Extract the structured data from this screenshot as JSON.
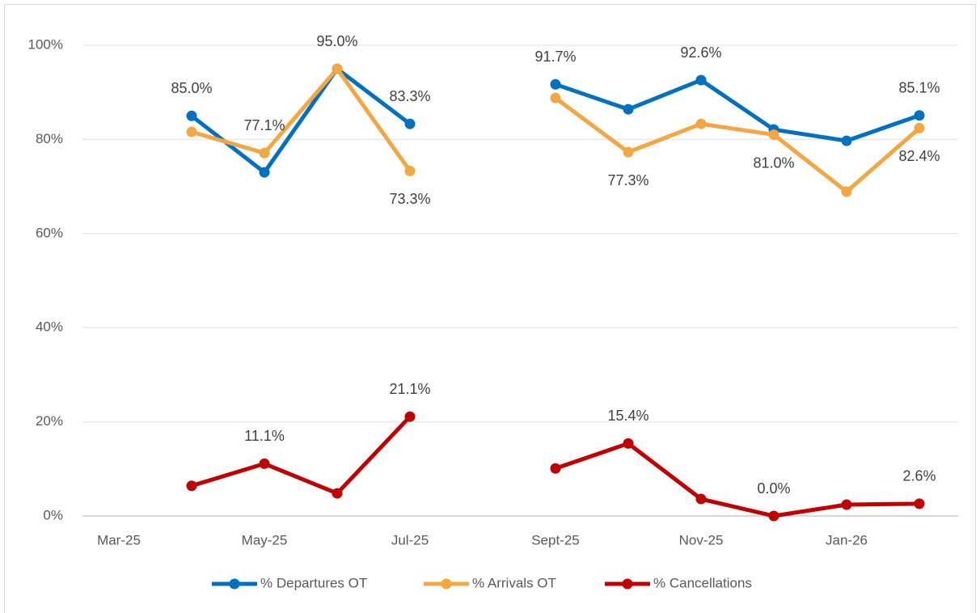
{
  "chart_data": {
    "type": "line",
    "categories": [
      "Mar-25",
      null,
      "May-25",
      null,
      "Jul-25",
      null,
      "Sept-25",
      null,
      "Nov-25",
      null,
      "Jan-26",
      null
    ],
    "series": [
      {
        "name": "% Departures OT",
        "color": "#0070c0",
        "values": [
          null,
          85.0,
          73.0,
          95.0,
          83.3,
          null,
          91.7,
          86.4,
          92.6,
          82.1,
          79.7,
          85.1
        ],
        "value_labels": [
          null,
          "85.0%",
          null,
          "95.0%",
          "83.3%",
          null,
          "91.7%",
          null,
          "92.6%",
          null,
          null,
          "85.1%"
        ]
      },
      {
        "name": "% Arrivals OT",
        "color": "#f4a642",
        "values": [
          null,
          81.6,
          77.1,
          95.0,
          73.3,
          null,
          88.8,
          77.3,
          83.3,
          81.0,
          68.9,
          82.4
        ],
        "value_labels": [
          null,
          null,
          "77.1%",
          null,
          "73.3%",
          null,
          null,
          "77.3%",
          null,
          "81.0%",
          null,
          "82.4%"
        ]
      },
      {
        "name": "% Cancellations",
        "color": "#c00000",
        "values": [
          null,
          6.4,
          11.1,
          4.8,
          21.1,
          null,
          10.1,
          15.4,
          3.6,
          0.0,
          2.4,
          2.6
        ],
        "value_labels": [
          null,
          null,
          "11.1%",
          null,
          "21.1%",
          null,
          null,
          "15.4%",
          null,
          "0.0%",
          null,
          "2.6%"
        ]
      }
    ],
    "ylim": [
      0,
      100
    ],
    "yticks": [
      {
        "value": 0,
        "label": "0%"
      },
      {
        "value": 20,
        "label": "20%"
      },
      {
        "value": 40,
        "label": "40%"
      },
      {
        "value": 60,
        "label": "60%"
      },
      {
        "value": 80,
        "label": "80%"
      },
      {
        "value": 100,
        "label": "100%"
      }
    ],
    "grid": true,
    "legend": "bottom"
  }
}
